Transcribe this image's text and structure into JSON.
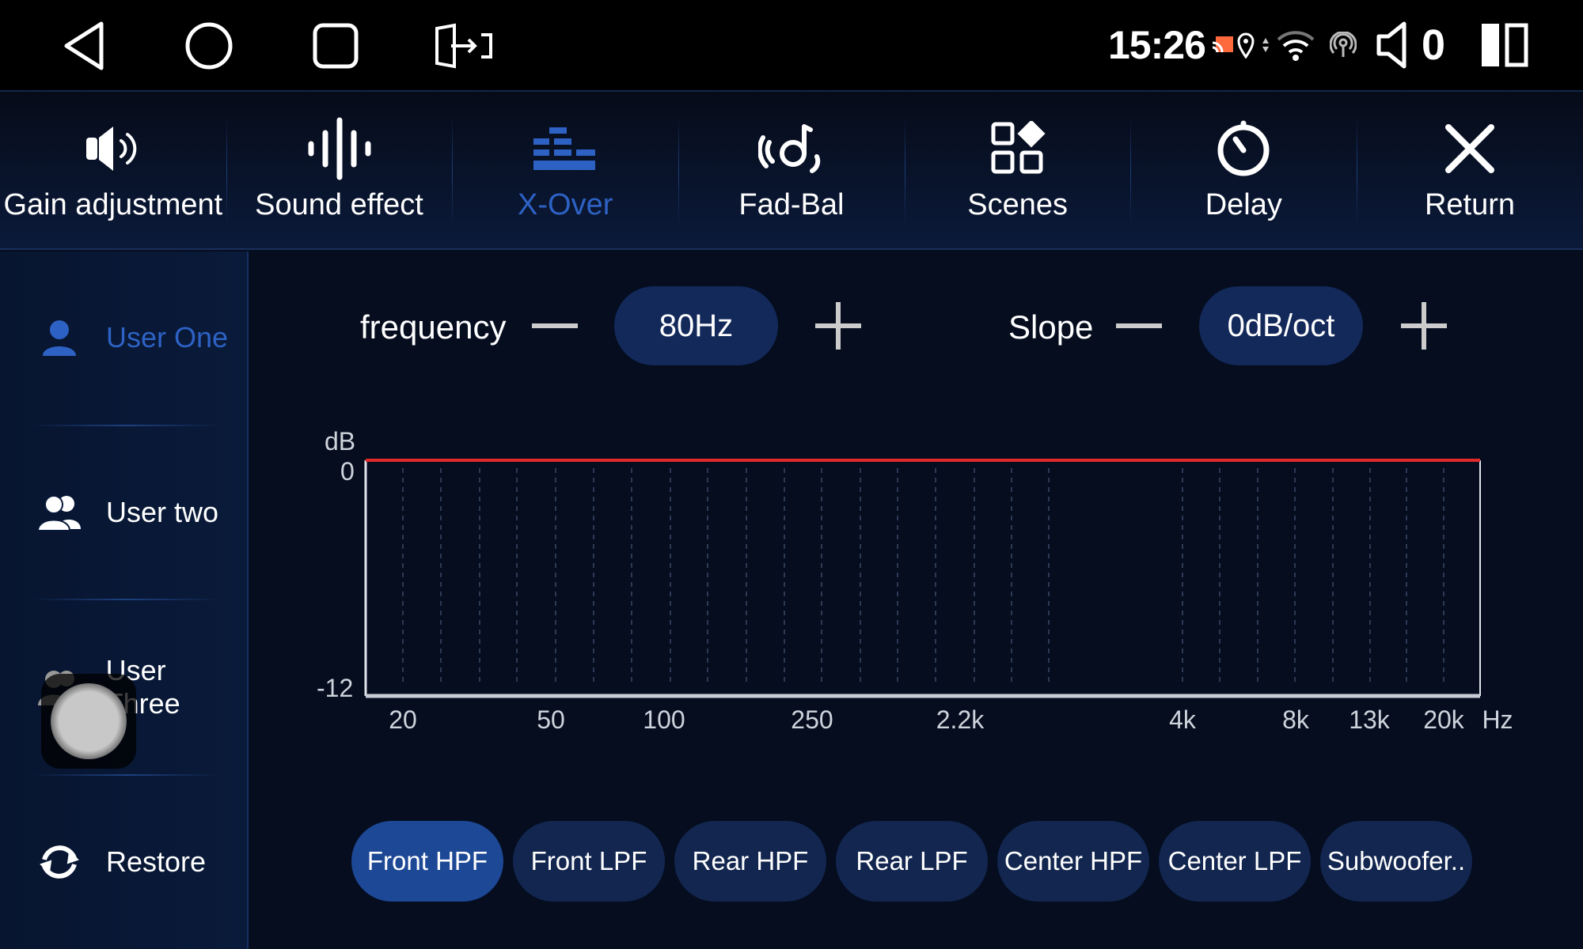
{
  "status_bar": {
    "nav": [
      "back-icon",
      "home-icon",
      "recents-icon",
      "screen-switch-icon"
    ],
    "time": "15:26",
    "volume": "0",
    "icons": [
      "cast-icon",
      "location-icon",
      "data-arrows-icon",
      "wifi-icon",
      "hotspot-icon",
      "speaker-icon",
      "split-screen-icon"
    ],
    "cast_color": "#ff6a3d"
  },
  "tabs": [
    {
      "label": "Gain adjustment",
      "icon": "speaker-icon"
    },
    {
      "label": "Sound effect",
      "icon": "waveform-icon"
    },
    {
      "label": "X-Over",
      "icon": "equalizer-bars-icon",
      "active": true
    },
    {
      "label": "Fad-Bal",
      "icon": "balance-icon"
    },
    {
      "label": "Scenes",
      "icon": "grid-icon"
    },
    {
      "label": "Delay",
      "icon": "timer-icon"
    },
    {
      "label": "Return",
      "icon": "close-icon"
    }
  ],
  "sidebar": {
    "items": [
      {
        "label": "User One",
        "icon": "user-icon",
        "active": true
      },
      {
        "label": "User two",
        "icon": "users-icon"
      },
      {
        "label": "User Three",
        "icon": "users-icon"
      },
      {
        "label": "Restore",
        "icon": "refresh-icon"
      }
    ]
  },
  "controls": {
    "frequency_label": "frequency",
    "frequency_value": "80Hz",
    "slope_label": "Slope",
    "slope_value": "0dB/oct"
  },
  "chart_data": {
    "type": "line",
    "ylabel": "dB",
    "xunit": "Hz",
    "ylim": [
      -12,
      0
    ],
    "yticks": [
      "0",
      "-12"
    ],
    "xticks": [
      "20",
      "50",
      "100",
      "250",
      "2.2k",
      "4k",
      "8k",
      "13k",
      "20k"
    ],
    "grid": "vertical dashed",
    "series": [
      {
        "x": [
          "20",
          "50",
          "100",
          "250",
          "2.2k",
          "4k",
          "8k",
          "13k",
          "20k"
        ],
        "values": [
          0,
          0,
          0,
          0,
          0,
          0,
          0,
          0,
          0
        ],
        "color": "#e02a2a"
      }
    ]
  },
  "channels": [
    {
      "label": "Front HPF",
      "active": true
    },
    {
      "label": "Front LPF"
    },
    {
      "label": "Rear HPF"
    },
    {
      "label": "Rear LPF"
    },
    {
      "label": "Center HPF"
    },
    {
      "label": "Center LPF"
    },
    {
      "label": "Subwoofer.."
    }
  ],
  "colors": {
    "accent": "#2d62c4",
    "background": "#050d1f",
    "pill": "#13295a",
    "curve": "#e02a2a"
  }
}
